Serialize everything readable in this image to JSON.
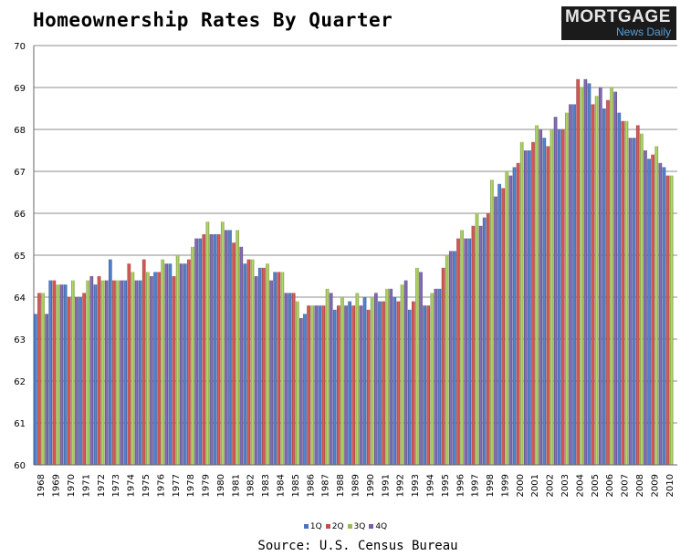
{
  "header": {
    "title": "Homeownership Rates By Quarter"
  },
  "logo": {
    "line1": "MORTGAGE",
    "line2": "News Daily"
  },
  "source": "Source: U.S. Census Bureau",
  "colors": {
    "1Q": "#4a74b8",
    "2Q": "#c0504d",
    "3Q": "#9bbb59",
    "4Q": "#7460a0",
    "grid": "#8c8c8c",
    "background": "#ffffff"
  },
  "chart_data": {
    "type": "bar",
    "title": "Homeownership Rates By Quarter",
    "xlabel": "",
    "ylabel": "",
    "ylim": [
      60,
      70
    ],
    "yticks": [
      60,
      61,
      62,
      63,
      64,
      65,
      66,
      67,
      68,
      69,
      70
    ],
    "grid": true,
    "legend_position": "bottom",
    "categories": [
      "1968",
      "1969",
      "1970",
      "1971",
      "1972",
      "1973",
      "1974",
      "1975",
      "1976",
      "1977",
      "1978",
      "1979",
      "1980",
      "1981",
      "1982",
      "1983",
      "1984",
      "1985",
      "1986",
      "1987",
      "1988",
      "1989",
      "1990",
      "1991",
      "1992",
      "1993",
      "1994",
      "1995",
      "1996",
      "1997",
      "1998",
      "1999",
      "2000",
      "2001",
      "2002",
      "2003",
      "2004",
      "2005",
      "2006",
      "2007",
      "2008",
      "2009",
      "2010"
    ],
    "series": [
      {
        "name": "1Q",
        "values": [
          63.6,
          64.4,
          64.3,
          64.0,
          64.3,
          64.9,
          64.4,
          64.4,
          64.6,
          64.8,
          64.8,
          65.4,
          65.5,
          65.6,
          64.8,
          64.7,
          64.6,
          64.1,
          63.6,
          63.8,
          63.7,
          63.9,
          64.0,
          63.9,
          64.0,
          63.7,
          63.8,
          64.2,
          65.1,
          65.4,
          65.9,
          66.7,
          67.1,
          67.5,
          67.8,
          68.0,
          68.6,
          69.1,
          68.5,
          68.4,
          67.8,
          67.3,
          67.1
        ]
      },
      {
        "name": "2Q",
        "values": [
          64.1,
          64.4,
          64.0,
          64.1,
          64.5,
          64.4,
          64.8,
          64.9,
          64.6,
          64.5,
          64.9,
          65.5,
          65.5,
          65.3,
          64.9,
          64.7,
          64.6,
          64.1,
          63.8,
          63.8,
          63.8,
          63.8,
          63.7,
          63.9,
          63.9,
          63.9,
          63.8,
          64.7,
          65.4,
          65.7,
          66.0,
          66.6,
          67.2,
          67.7,
          67.6,
          68.0,
          69.2,
          68.6,
          68.7,
          68.2,
          68.1,
          67.4,
          66.9
        ]
      },
      {
        "name": "3Q",
        "values": [
          64.1,
          64.3,
          64.4,
          64.4,
          64.4,
          64.4,
          64.6,
          64.6,
          64.9,
          65.0,
          65.2,
          65.8,
          65.8,
          65.6,
          64.9,
          64.8,
          64.6,
          63.9,
          63.8,
          64.2,
          64.0,
          64.1,
          64.0,
          64.2,
          64.3,
          64.7,
          64.1,
          65.0,
          65.6,
          66.0,
          66.8,
          67.0,
          67.7,
          68.1,
          68.0,
          68.4,
          69.0,
          68.8,
          69.0,
          68.2,
          67.9,
          67.6,
          66.9
        ]
      },
      {
        "name": "4Q",
        "values": [
          63.6,
          64.3,
          64.0,
          64.5,
          64.4,
          64.4,
          64.4,
          64.5,
          64.8,
          64.8,
          65.4,
          65.5,
          65.6,
          65.2,
          64.5,
          64.4,
          64.1,
          63.5,
          63.8,
          64.1,
          63.8,
          63.8,
          64.1,
          64.2,
          64.4,
          64.6,
          64.2,
          65.1,
          65.4,
          65.7,
          66.4,
          66.9,
          67.5,
          68.0,
          68.3,
          68.6,
          69.2,
          69.0,
          68.9,
          67.8,
          67.5,
          67.2,
          null
        ]
      }
    ]
  }
}
